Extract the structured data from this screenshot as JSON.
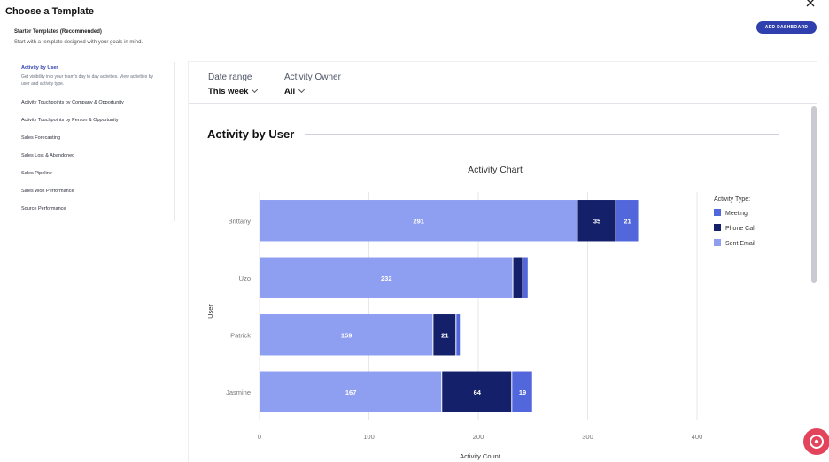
{
  "modal": {
    "title": "Choose a Template",
    "close_icon": "close-icon"
  },
  "section": {
    "title": "Starter Templates (Recommended)",
    "subtitle": "Start with a template designed with your goals in mind.",
    "add_button_label": "ADD DASHBOARD"
  },
  "sidebar": {
    "active_description": "Get visibility into your team's day to day activities. View activities by user and activity type.",
    "items": [
      {
        "label": "Activity by User"
      },
      {
        "label": "Activity Touchpoints by Company & Opportunity"
      },
      {
        "label": "Activity Touchpoints by Person & Opportunity"
      },
      {
        "label": "Sales Forecasting"
      },
      {
        "label": "Sales Lost & Abandoned"
      },
      {
        "label": "Sales Pipeline"
      },
      {
        "label": "Sales Won Performance"
      },
      {
        "label": "Source Performance"
      }
    ]
  },
  "filters": {
    "date_range": {
      "label": "Date range",
      "value": "This week"
    },
    "activity_owner": {
      "label": "Activity Owner",
      "value": "All"
    }
  },
  "report": {
    "title": "Activity by User"
  },
  "colors": {
    "accent": "#2f3fad",
    "meeting": "#5267dc",
    "phone_call": "#15206b",
    "sent_email": "#8e9ef0",
    "fab": "#e2445c"
  },
  "chart_data": {
    "type": "bar",
    "orientation": "horizontal",
    "stacked": true,
    "title": "Activity Chart",
    "xlabel": "Activity Count",
    "ylabel": "User",
    "xlim": [
      0,
      400
    ],
    "xticks": [
      0,
      100,
      200,
      300,
      400
    ],
    "grid": true,
    "legend_title": "Activity Type:",
    "legend_position": "right",
    "categories": [
      "Brittany",
      "Uzo",
      "Patrick",
      "Jasmine"
    ],
    "series": [
      {
        "name": "Sent Email",
        "color": "#8e9ef0",
        "values": [
          291,
          232,
          159,
          167
        ],
        "labels": [
          "291",
          "232",
          "159",
          "167"
        ]
      },
      {
        "name": "Phone Call",
        "color": "#15206b",
        "values": [
          35,
          9,
          21,
          64
        ],
        "labels": [
          "35",
          "",
          "21",
          "64"
        ]
      },
      {
        "name": "Meeting",
        "color": "#5267dc",
        "values": [
          21,
          5,
          4,
          19
        ],
        "labels": [
          "21",
          "",
          "",
          "19"
        ]
      }
    ],
    "legend_order": [
      "Meeting",
      "Phone Call",
      "Sent Email"
    ]
  }
}
